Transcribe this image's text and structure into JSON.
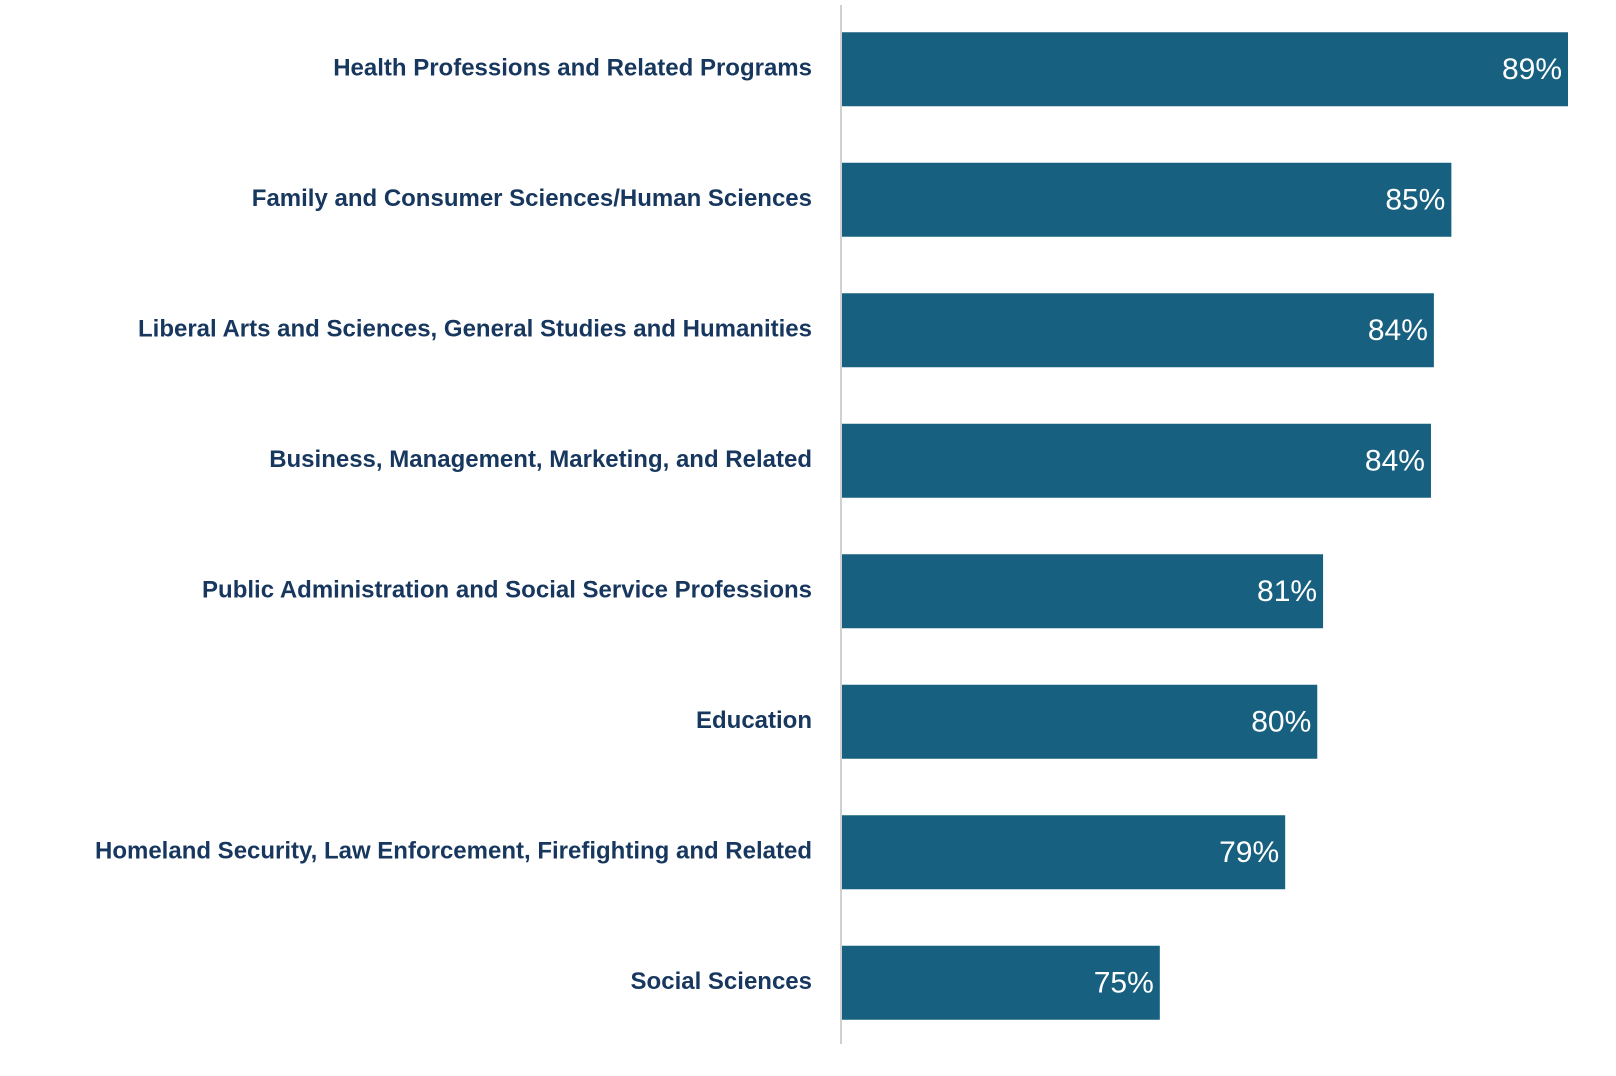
{
  "chart_data": {
    "type": "barh",
    "categories": [
      "Health Professions and Related Programs",
      "Family and Consumer Sciences/Human Sciences",
      "Liberal Arts and Sciences, General Studies and Humanities",
      "Business, Management, Marketing, and Related",
      "Public Administration and Social Service Professions",
      "Education",
      "Homeland Security, Law Enforcement, Firefighting and Related",
      "Social Sciences"
    ],
    "values": [
      89.0,
      85.0,
      84.4,
      84.3,
      80.6,
      80.4,
      79.3,
      75.0
    ],
    "value_labels": [
      "89%",
      "85%",
      "84%",
      "84%",
      "81%",
      "80%",
      "79%",
      "75%"
    ],
    "color": "#17607f",
    "xlim": [
      64.1,
      89.0
    ]
  }
}
